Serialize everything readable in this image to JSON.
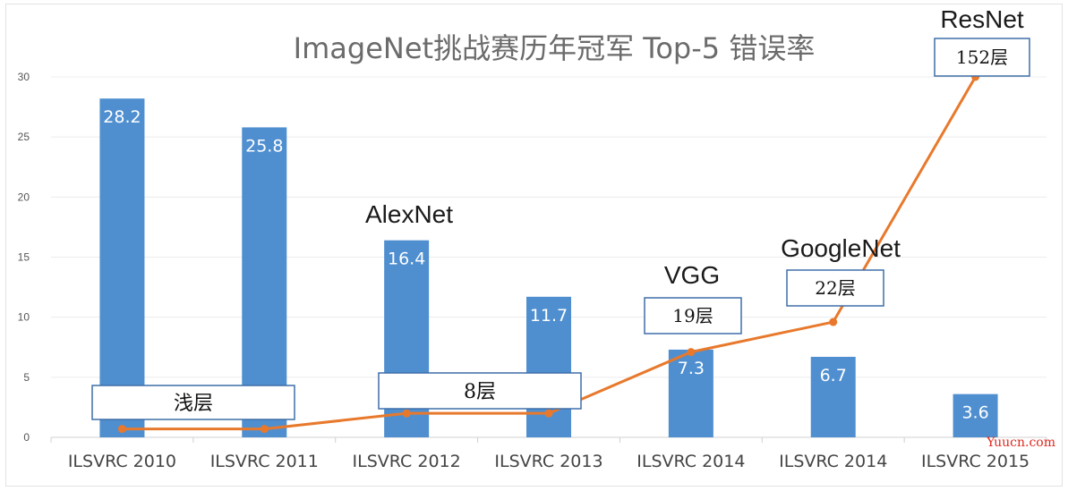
{
  "chart_data": {
    "type": "bar",
    "title": "ImageNet挑战赛历年冠军 Top-5 错误率",
    "categories": [
      "ILSVRC 2010",
      "ILSVRC 2011",
      "ILSVRC 2012",
      "ILSVRC 2013",
      "ILSVRC 2014",
      "ILSVRC 2014",
      "ILSVRC 2015"
    ],
    "values": [
      28.2,
      25.8,
      16.4,
      11.7,
      7.3,
      6.7,
      3.6
    ],
    "value_labels": [
      "28.2",
      "25.8",
      "16.4",
      "11.7",
      "7.3",
      "6.7",
      "3.6"
    ],
    "ylim": [
      0,
      30
    ],
    "yticks": [
      0,
      5,
      10,
      15,
      20,
      25,
      30
    ],
    "grid": true,
    "bar_color": "#4f8fd0",
    "line_series": {
      "color": "#e8792c",
      "x": [
        "ILSVRC 2010",
        "ILSVRC 2011",
        "ILSVRC 2012",
        "ILSVRC 2013",
        "ILSVRC 2014",
        "ILSVRC 2014",
        "ILSVRC 2015"
      ],
      "values": [
        0.7,
        0.7,
        2.0,
        2.0,
        7.1,
        9.6,
        30
      ]
    },
    "annotations": {
      "model_names": [
        {
          "text": "AlexNet",
          "category_index": 2
        },
        {
          "text": "VGG",
          "category_index": 4
        },
        {
          "text": "GoogleNet",
          "category_index": 5
        },
        {
          "text": "ResNet",
          "category_index": 6
        }
      ],
      "layer_boxes": [
        {
          "text": "浅层"
        },
        {
          "text": "8层"
        },
        {
          "text": "19层"
        },
        {
          "text": "22层"
        },
        {
          "text": "152层"
        }
      ]
    }
  },
  "watermark": "Yuucn.com"
}
